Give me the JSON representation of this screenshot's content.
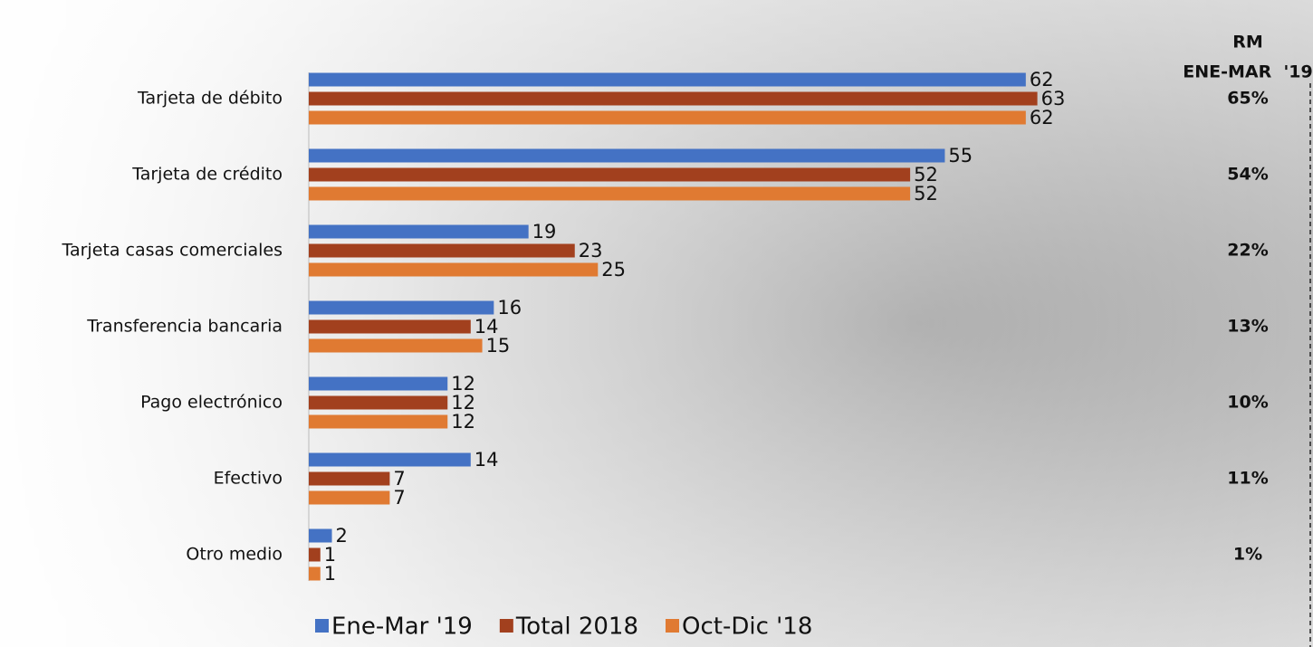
{
  "chart_data": {
    "type": "bar",
    "orientation": "horizontal",
    "categories": [
      "Tarjeta de débito",
      "Tarjeta de crédito",
      "Tarjeta casas comerciales",
      "Transferencia bancaria",
      "Pago electrónico",
      "Efectivo",
      "Otro medio"
    ],
    "series": [
      {
        "name": "Ene-Mar '19",
        "color": "#4472c4",
        "values": [
          62,
          55,
          19,
          16,
          12,
          14,
          2
        ]
      },
      {
        "name": "Total 2018",
        "color": "#a2401e",
        "values": [
          63,
          52,
          23,
          14,
          12,
          7,
          1
        ]
      },
      {
        "name": "Oct-Dic '18",
        "color": "#e07a32",
        "values": [
          62,
          52,
          25,
          15,
          12,
          7,
          1
        ]
      }
    ],
    "xlim": [
      0,
      70
    ],
    "legend": "bottom"
  },
  "rm_column": {
    "header": [
      "RM",
      "ENE-MAR  '19"
    ],
    "values": [
      "65%",
      "54%",
      "22%",
      "13%",
      "10%",
      "11%",
      "1%"
    ]
  }
}
